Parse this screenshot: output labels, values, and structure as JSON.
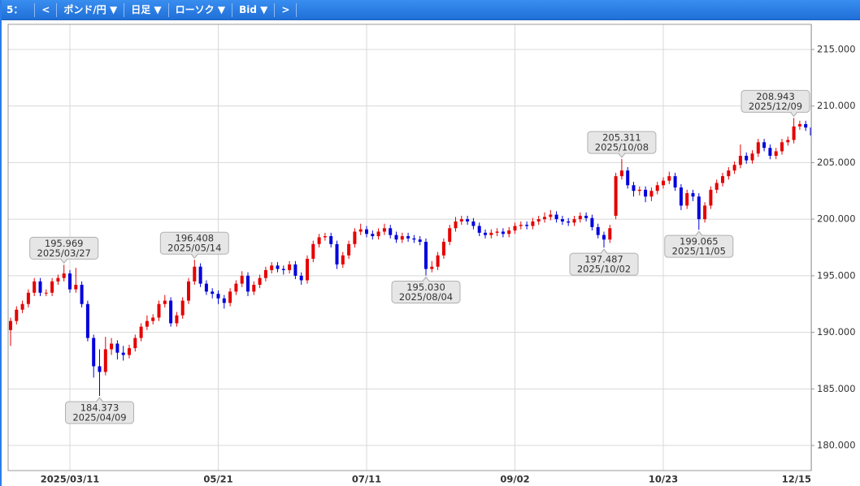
{
  "toolbar": [
    "5：",
    "<",
    "ポンド/円 ▼",
    "日足 ▼",
    "ローソク ▼",
    "Bid ▼",
    ">"
  ],
  "chart_data": {
    "type": "candlestick",
    "up_color": "#e60000",
    "down_color": "#0000dd",
    "grid": true,
    "ylim": [
      177.78,
      217.22
    ],
    "yticks": [
      {
        "value": 180,
        "label": "180.000"
      },
      {
        "value": 185,
        "label": "185.000"
      },
      {
        "value": 190,
        "label": "190.000"
      },
      {
        "value": 195,
        "label": "195.000"
      },
      {
        "value": 200,
        "label": "200.000"
      },
      {
        "value": 205,
        "label": "205.000"
      },
      {
        "value": 210,
        "label": "210.000"
      },
      {
        "value": 215,
        "label": "215.000"
      }
    ],
    "categories": [
      null,
      null,
      null,
      null,
      null,
      null,
      null,
      null,
      null,
      null,
      "2025/03/11",
      null,
      null,
      null,
      null,
      null,
      null,
      null,
      null,
      null,
      null,
      null,
      null,
      null,
      null,
      null,
      null,
      null,
      null,
      null,
      null,
      null,
      null,
      null,
      null,
      "05/21",
      null,
      null,
      null,
      null,
      null,
      null,
      null,
      null,
      null,
      null,
      null,
      null,
      null,
      null,
      null,
      null,
      null,
      null,
      null,
      null,
      null,
      null,
      null,
      null,
      "07/11",
      null,
      null,
      null,
      null,
      null,
      null,
      null,
      null,
      null,
      null,
      null,
      null,
      null,
      null,
      null,
      null,
      null,
      null,
      null,
      null,
      null,
      null,
      null,
      null,
      "09/02",
      null,
      null,
      null,
      null,
      null,
      null,
      null,
      null,
      null,
      null,
      null,
      null,
      null,
      null,
      null,
      null,
      null,
      null,
      null,
      null,
      null,
      null,
      null,
      null,
      "10/23",
      null,
      null,
      null,
      null,
      null,
      null,
      null,
      null,
      null,
      null,
      null,
      null,
      null,
      null,
      null,
      null,
      null,
      null,
      null,
      null,
      null,
      null,
      null,
      null,
      "12/15"
    ],
    "open": [
      190.2,
      191.0,
      192.0,
      192.5,
      193.5,
      194.5,
      193.5,
      193.5,
      194.5,
      194.8,
      195.2,
      193.8,
      194.2,
      192.5,
      189.5,
      187.0,
      186.5,
      188.5,
      189.0,
      188.2,
      188.0,
      188.6,
      189.5,
      190.5,
      191.0,
      191.3,
      192.5,
      192.8,
      190.8,
      191.5,
      192.8,
      194.5,
      195.8,
      194.3,
      193.6,
      193.4,
      193.0,
      192.6,
      193.6,
      194.3,
      195.0,
      193.6,
      194.2,
      194.8,
      195.5,
      195.9,
      195.6,
      195.5,
      196.0,
      195.0,
      194.6,
      196.5,
      197.8,
      198.4,
      198.5,
      197.8,
      196.0,
      196.8,
      197.8,
      198.9,
      199.1,
      198.7,
      198.5,
      198.9,
      199.2,
      198.6,
      198.2,
      198.5,
      198.3,
      198.2,
      198.0,
      195.6,
      195.8,
      196.8,
      198.0,
      199.2,
      199.8,
      200.0,
      199.8,
      199.4,
      198.8,
      198.6,
      198.8,
      198.9,
      198.7,
      199.0,
      199.4,
      199.5,
      199.4,
      199.8,
      200.0,
      200.2,
      200.4,
      200.0,
      199.8,
      199.7,
      200.0,
      200.3,
      200.1,
      199.3,
      198.6,
      198.2,
      200.3,
      203.8,
      204.3,
      203.0,
      202.5,
      202.6,
      202.0,
      202.5,
      203.0,
      203.4,
      203.8,
      202.8,
      201.2,
      202.3,
      202.0,
      200.0,
      201.2,
      202.6,
      203.2,
      203.8,
      204.3,
      204.8,
      205.6,
      205.2,
      205.8,
      206.8,
      206.3,
      205.6,
      206.0,
      206.8,
      207.0,
      208.2,
      208.4,
      208.1
    ],
    "high": [
      191.3,
      192.3,
      192.8,
      193.8,
      194.8,
      194.8,
      193.8,
      194.8,
      195.1,
      195.969,
      195.5,
      195.7,
      194.5,
      192.8,
      189.8,
      188.5,
      189.6,
      189.5,
      189.3,
      188.8,
      188.9,
      189.8,
      190.8,
      191.5,
      191.6,
      192.8,
      193.3,
      193.1,
      191.8,
      193.1,
      194.8,
      196.408,
      196.1,
      194.6,
      193.9,
      193.7,
      193.3,
      193.9,
      194.6,
      195.4,
      195.3,
      194.5,
      195.1,
      195.8,
      196.2,
      196.2,
      195.9,
      196.3,
      196.3,
      195.3,
      196.8,
      198.1,
      198.7,
      198.8,
      198.8,
      198.1,
      197.1,
      198.1,
      199.2,
      199.6,
      199.4,
      199.0,
      199.2,
      199.6,
      199.5,
      198.9,
      198.8,
      198.8,
      198.6,
      198.5,
      198.3,
      196.3,
      197.1,
      198.3,
      199.5,
      200.2,
      200.3,
      200.3,
      200.1,
      199.7,
      199.1,
      199.1,
      199.2,
      199.2,
      199.3,
      199.7,
      199.8,
      199.8,
      200.1,
      200.3,
      200.6,
      200.8,
      200.7,
      200.3,
      200.1,
      200.3,
      200.6,
      200.6,
      200.4,
      199.6,
      198.9,
      199.5,
      204.1,
      205.311,
      204.6,
      203.3,
      202.9,
      202.9,
      202.8,
      203.3,
      203.7,
      204.2,
      204.1,
      203.1,
      202.6,
      202.6,
      202.3,
      201.5,
      202.9,
      203.5,
      204.1,
      204.6,
      205.1,
      206.6,
      205.9,
      206.1,
      207.1,
      207.1,
      206.6,
      206.3,
      207.1,
      207.3,
      208.943,
      208.7,
      208.7,
      208.4
    ],
    "low": [
      188.8,
      190.7,
      191.7,
      192.2,
      193.2,
      193.2,
      193.2,
      193.2,
      194.2,
      194.5,
      193.5,
      193.5,
      192.2,
      189.2,
      186.0,
      184.373,
      186.2,
      188.0,
      187.6,
      187.5,
      187.7,
      188.3,
      189.2,
      190.2,
      190.7,
      191.0,
      192.2,
      190.5,
      190.5,
      191.2,
      192.5,
      194.2,
      194.0,
      193.3,
      193.0,
      192.5,
      192.1,
      192.3,
      193.3,
      194.0,
      193.2,
      193.3,
      193.9,
      194.5,
      195.2,
      195.3,
      195.1,
      195.2,
      194.7,
      194.2,
      194.3,
      196.2,
      197.5,
      198.1,
      197.5,
      195.6,
      195.7,
      196.5,
      197.5,
      198.6,
      198.4,
      198.2,
      198.2,
      198.6,
      198.3,
      197.9,
      197.9,
      198.0,
      197.9,
      197.7,
      195.03,
      195.3,
      195.5,
      196.5,
      197.7,
      198.9,
      199.5,
      199.5,
      199.1,
      198.5,
      198.3,
      198.3,
      198.5,
      198.4,
      198.4,
      198.7,
      199.1,
      199.1,
      199.1,
      199.5,
      199.7,
      199.9,
      199.7,
      199.5,
      199.4,
      199.4,
      199.7,
      199.8,
      199.0,
      198.3,
      197.487,
      197.9,
      200.0,
      203.5,
      202.7,
      202.0,
      202.1,
      201.5,
      201.6,
      202.2,
      202.7,
      203.1,
      202.5,
      200.8,
      200.9,
      201.6,
      199.065,
      199.7,
      200.9,
      202.3,
      202.9,
      203.5,
      204.0,
      204.5,
      204.9,
      204.9,
      205.5,
      206.0,
      205.3,
      205.3,
      205.7,
      206.5,
      206.7,
      207.9,
      207.8,
      207.1
    ],
    "close": [
      191.0,
      192.0,
      192.5,
      193.5,
      194.5,
      193.5,
      193.5,
      194.5,
      194.8,
      195.2,
      193.8,
      194.2,
      192.5,
      189.5,
      187.0,
      186.5,
      188.5,
      189.0,
      188.2,
      188.0,
      188.6,
      189.5,
      190.5,
      191.0,
      191.3,
      192.5,
      192.8,
      190.8,
      191.5,
      192.8,
      194.5,
      195.8,
      194.3,
      193.6,
      193.4,
      193.0,
      192.6,
      193.6,
      194.3,
      195.0,
      193.6,
      194.2,
      194.8,
      195.5,
      195.9,
      195.6,
      195.5,
      196.0,
      195.0,
      194.6,
      196.5,
      197.8,
      198.4,
      198.5,
      197.8,
      196.0,
      196.8,
      197.8,
      198.9,
      199.1,
      198.7,
      198.5,
      198.9,
      199.2,
      198.6,
      198.2,
      198.5,
      198.3,
      198.2,
      198.0,
      195.6,
      195.8,
      196.8,
      198.0,
      199.2,
      199.8,
      200.0,
      199.8,
      199.4,
      198.8,
      198.6,
      198.8,
      198.9,
      198.7,
      199.0,
      199.4,
      199.5,
      199.4,
      199.8,
      200.0,
      200.2,
      200.4,
      200.0,
      199.8,
      199.7,
      200.0,
      200.3,
      200.1,
      199.3,
      198.6,
      198.2,
      199.2,
      203.8,
      204.3,
      203.0,
      202.5,
      202.6,
      202.0,
      202.5,
      203.0,
      203.4,
      203.8,
      202.8,
      201.2,
      202.3,
      202.0,
      200.0,
      201.2,
      202.6,
      203.2,
      203.8,
      204.3,
      204.8,
      205.6,
      205.2,
      205.8,
      206.8,
      206.3,
      205.6,
      206.0,
      206.8,
      207.0,
      208.2,
      208.4,
      208.1,
      207.4
    ],
    "annotations": [
      {
        "value": 195.969,
        "label": "195.969",
        "date": "2025/03/27"
      },
      {
        "value": 184.373,
        "label": "184.373",
        "date": "2025/04/09"
      },
      {
        "value": 196.408,
        "label": "196.408",
        "date": "2025/05/14"
      },
      {
        "value": 195.03,
        "label": "195.030",
        "date": "2025/08/04"
      },
      {
        "value": 205.311,
        "label": "205.311",
        "date": "2025/10/08"
      },
      {
        "value": 197.487,
        "label": "197.487",
        "date": "2025/10/02"
      },
      {
        "value": 199.065,
        "label": "199.065",
        "date": "2025/11/05"
      },
      {
        "value": 208.943,
        "label": "208.943",
        "date": "2025/12/09"
      }
    ]
  }
}
